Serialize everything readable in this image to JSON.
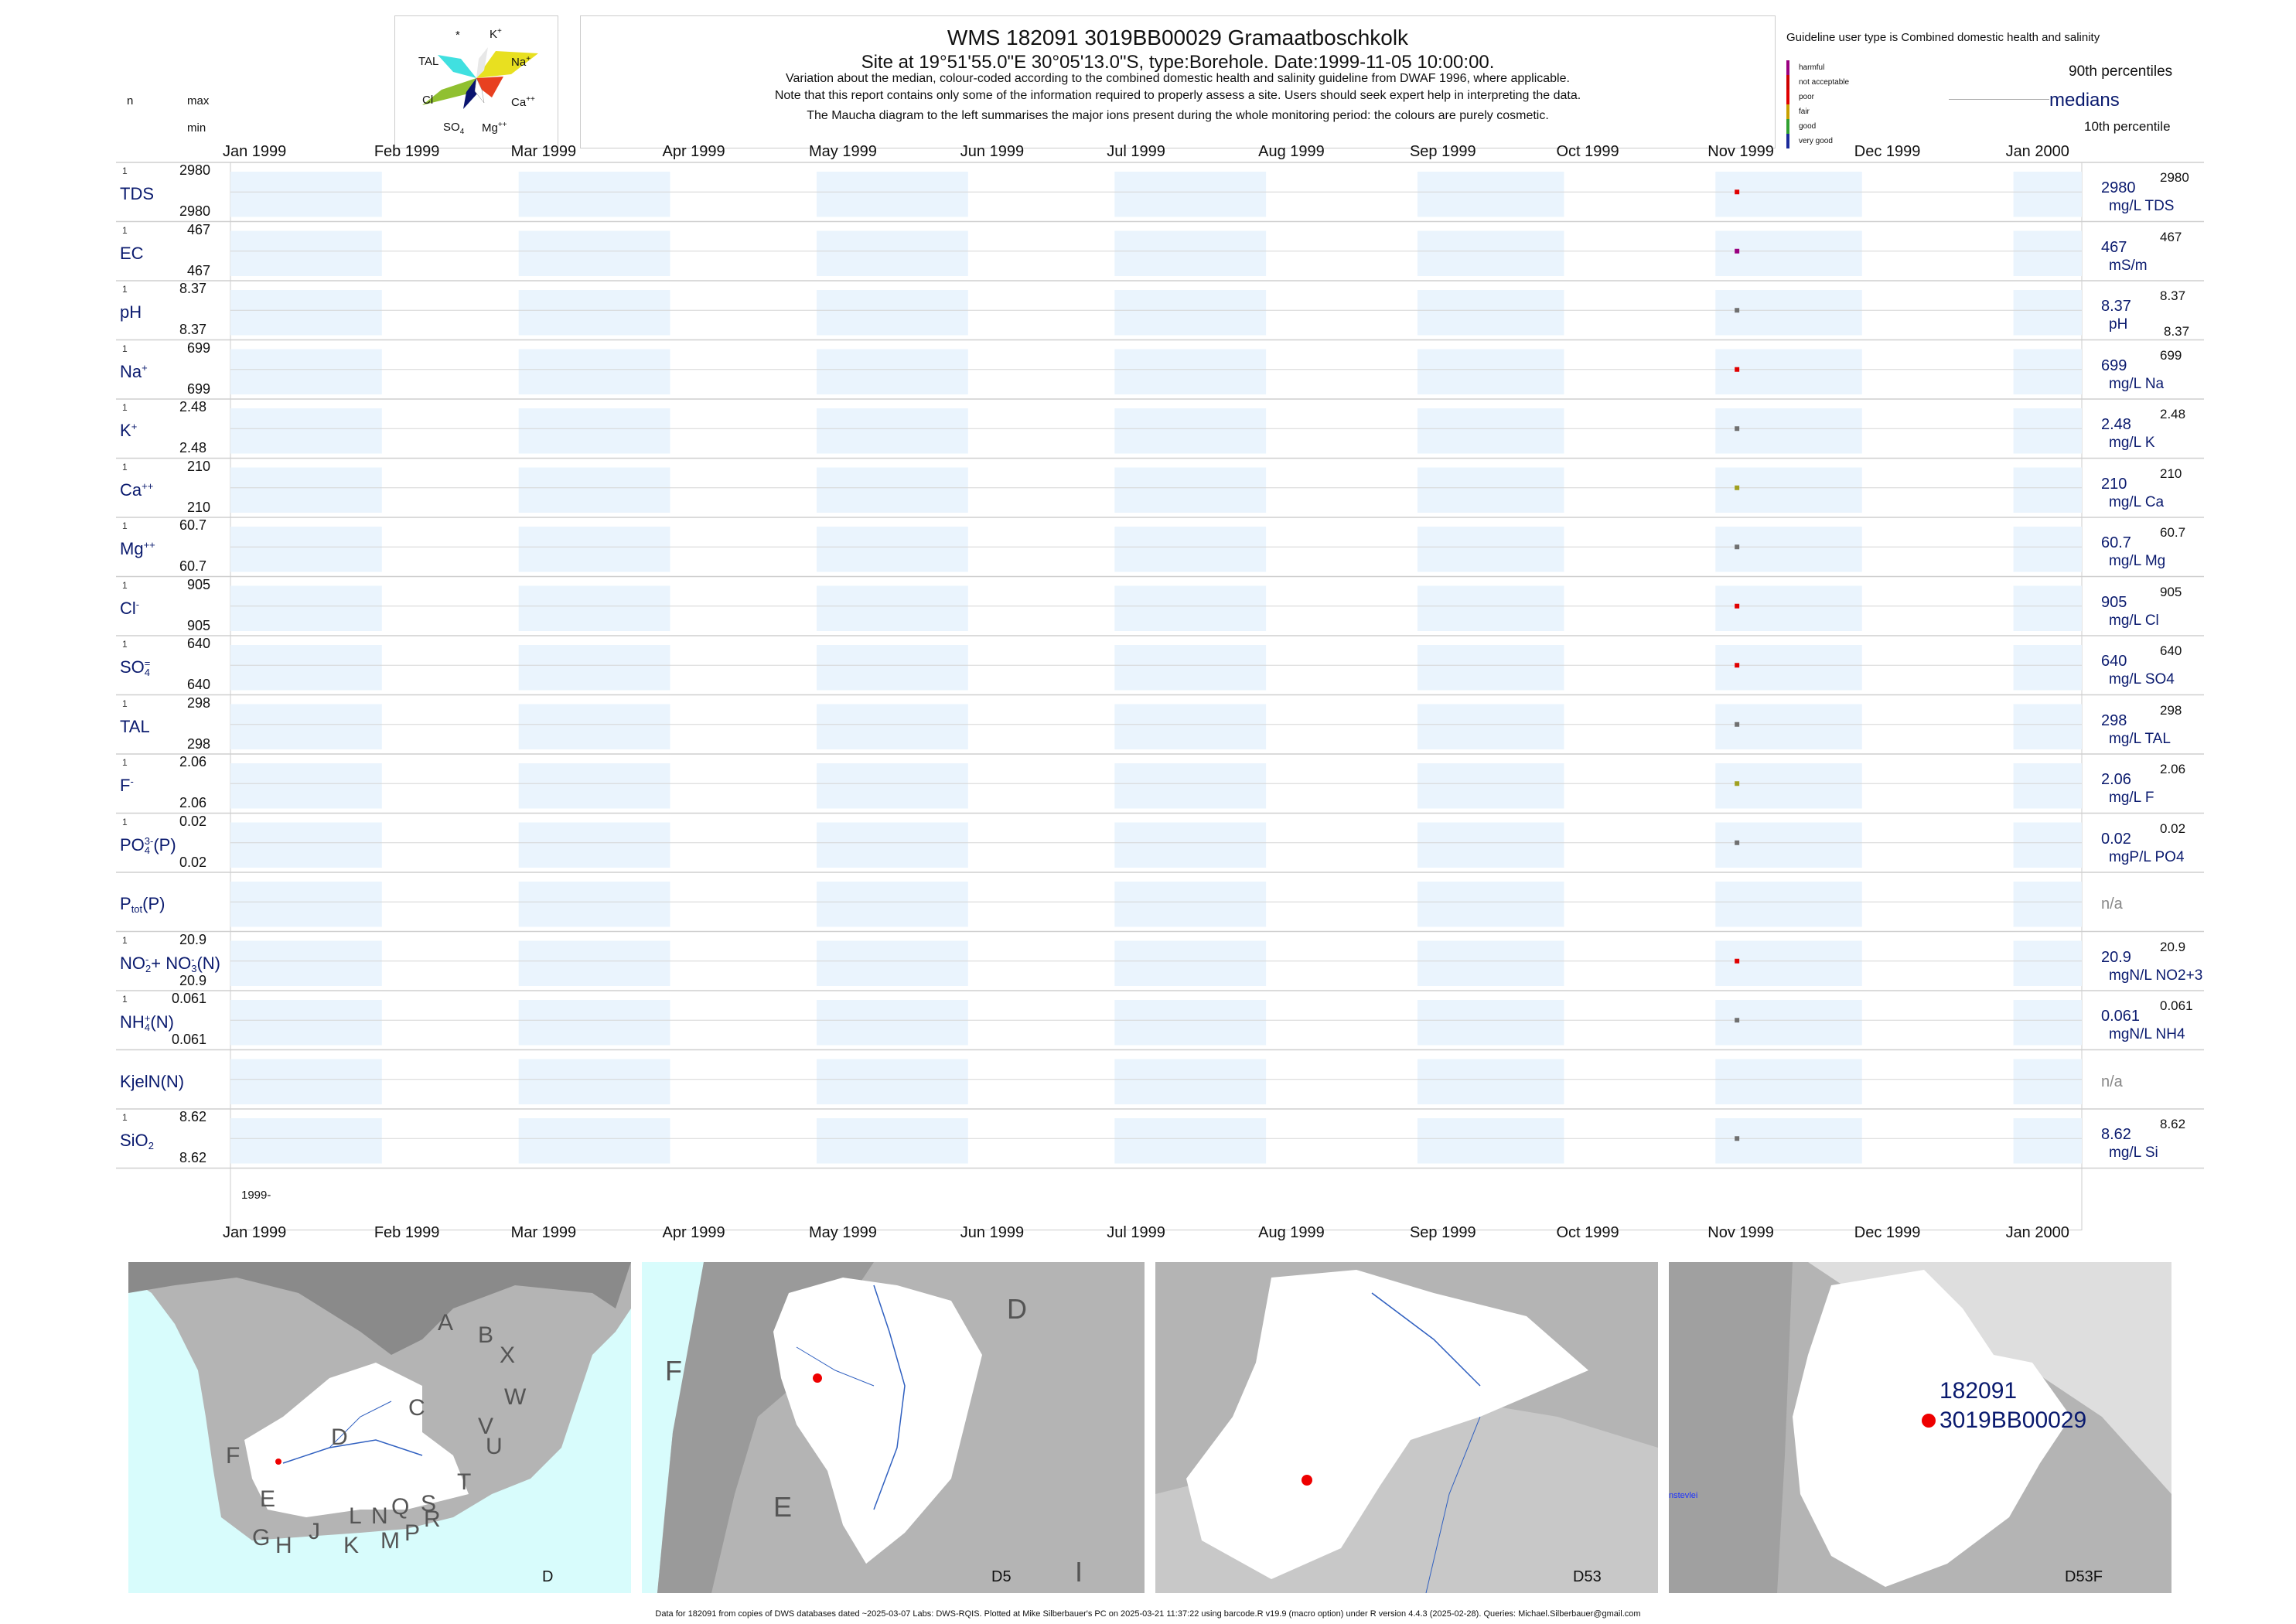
{
  "header": {
    "title": "WMS 182091 3019BB00029 Gramaatboschkolk",
    "subtitle": "Site at 19°51'55.0\"E 30°05'13.0\"S, type:Borehole. Date:1999-11-05 10:00:00.",
    "note1": "Variation about the median,  colour-coded according to the combined domestic health and salinity guideline from DWAF 1996, where applicable.",
    "note2": "Note that this report contains only some of the information required to properly assess a site. Users should seek expert help in interpreting the data.",
    "note3": "The Maucha diagram to the left summarises the major ions present during the whole monitoring period: the colours are purely cosmetic."
  },
  "maucha": {
    "labels": {
      "star": "*",
      "k": "K",
      "k_sup": "+",
      "tal": "TAL",
      "na": "Na",
      "na_sup": "+",
      "cl": "Cl",
      "ca": "Ca",
      "ca_sup": "++",
      "so4": "SO",
      "so4_sub": "4",
      "mg": "Mg",
      "mg_sup": "++"
    },
    "colors": {
      "na": "#e8e020",
      "cl": "#90c030",
      "so4": "#0a1470",
      "tal": "#40e0e0",
      "ca": "#e84020",
      "mg": "#ffffff",
      "k": "#e8e8e8"
    }
  },
  "left_header": {
    "n": "n",
    "max": "max",
    "min": "min"
  },
  "legend": {
    "guideline": "Guideline user type is Combined domestic health and salinity",
    "classes": [
      {
        "label": "harmful",
        "color": "#9a0080"
      },
      {
        "label": "not acceptable",
        "color": "#cc0000"
      },
      {
        "label": "poor",
        "color": "#e00000"
      },
      {
        "label": "fair",
        "color": "#c8a000"
      },
      {
        "label": "good",
        "color": "#30a030"
      },
      {
        "label": "very good",
        "color": "#1a2a9a"
      }
    ],
    "p90": "90th percentiles",
    "medians": "medians",
    "p10": "10th percentile"
  },
  "chart_data": {
    "type": "scatter",
    "x_axis": {
      "months": [
        "Jan 1999",
        "Feb 1999",
        "Mar 1999",
        "Apr 1999",
        "May 1999",
        "Jun 1999",
        "Jul 1999",
        "Aug 1999",
        "Sep 1999",
        "Oct 1999",
        "Nov 1999",
        "Dec 1999",
        "Jan 2000"
      ],
      "year_label": "1999-"
    },
    "sample_date": "1999-11-05",
    "series": [
      {
        "param": "TDS",
        "sup": "",
        "sub": "",
        "n": "1",
        "max": "2980",
        "min": "2980",
        "value": "2980",
        "unit": "mg/L TDS",
        "color": "#e00000"
      },
      {
        "param": "EC",
        "sup": "",
        "sub": "",
        "n": "1",
        "max": "467",
        "min": "467",
        "value": "467",
        "unit": "mS/m",
        "color": "#9a0080"
      },
      {
        "param": "pH",
        "sup": "",
        "sub": "",
        "n": "1",
        "max": "8.37",
        "min": "8.37",
        "value": "8.37",
        "unit": "pH",
        "color": "#707070",
        "right_min": "8.37"
      },
      {
        "param": "Na",
        "sup": "+",
        "sub": "",
        "n": "1",
        "max": "699",
        "min": "699",
        "value": "699",
        "unit": "mg/L Na",
        "color": "#e00000"
      },
      {
        "param": "K",
        "sup": "+",
        "sub": "",
        "n": "1",
        "max": "2.48",
        "min": "2.48",
        "value": "2.48",
        "unit": "mg/L K",
        "color": "#707070"
      },
      {
        "param": "Ca",
        "sup": "++",
        "sub": "",
        "n": "1",
        "max": "210",
        "min": "210",
        "value": "210",
        "unit": "mg/L Ca",
        "color": "#a0a020"
      },
      {
        "param": "Mg",
        "sup": "++",
        "sub": "",
        "n": "1",
        "max": "60.7",
        "min": "60.7",
        "value": "60.7",
        "unit": "mg/L Mg",
        "color": "#707070"
      },
      {
        "param": "Cl",
        "sup": "-",
        "sub": "",
        "n": "1",
        "max": "905",
        "min": "905",
        "value": "905",
        "unit": "mg/L Cl",
        "color": "#e00000"
      },
      {
        "param": "SO",
        "sup": "=",
        "sub": "4",
        "n": "1",
        "max": "640",
        "min": "640",
        "value": "640",
        "unit": "mg/L SO4",
        "color": "#e00000"
      },
      {
        "param": "TAL",
        "sup": "",
        "sub": "",
        "n": "1",
        "max": "298",
        "min": "298",
        "value": "298",
        "unit": "mg/L TAL",
        "color": "#707070"
      },
      {
        "param": "F",
        "sup": "-",
        "sub": "",
        "n": "1",
        "max": "2.06",
        "min": "2.06",
        "value": "2.06",
        "unit": "mg/L F",
        "color": "#a0a020"
      },
      {
        "param": "PO",
        "sup": "3-",
        "sub": "4",
        "suffix": "(P)",
        "n": "1",
        "max": "0.02",
        "min": "0.02",
        "value": "0.02",
        "unit": "mgP/L PO4",
        "color": "#707070"
      },
      {
        "param": "P",
        "sub": "tot",
        "suffix": "(P)",
        "n": "",
        "max": "",
        "min": "",
        "value": "n/a",
        "unit": "",
        "color": ""
      },
      {
        "param": "NO",
        "sup": "-",
        "sub": "2",
        "suffix": "+ NO",
        "suffix_sup": "-",
        "suffix_sub": "3",
        "suffix2": "(N)",
        "n": "1",
        "max": "20.9",
        "min": "20.9",
        "value": "20.9",
        "unit": "mgN/L NO2+3",
        "color": "#e00000"
      },
      {
        "param": "NH",
        "sup": "+",
        "sub": "4",
        "suffix": "(N)",
        "n": "1",
        "max": "0.061",
        "min": "0.061",
        "value": "0.061",
        "unit": "mgN/L NH4",
        "color": "#707070"
      },
      {
        "param": "KjelN(N)",
        "n": "",
        "max": "",
        "min": "",
        "value": "n/a",
        "unit": "",
        "color": ""
      },
      {
        "param": "SiO",
        "sub": "2",
        "n": "1",
        "max": "8.62",
        "min": "8.62",
        "value": "8.62",
        "unit": "mg/L Si",
        "color": "#707070"
      }
    ]
  },
  "maps": {
    "panel1": {
      "label": "D",
      "regions": [
        "A",
        "B",
        "X",
        "W",
        "C",
        "V",
        "U",
        "T",
        "D",
        "F",
        "E",
        "G",
        "H",
        "J",
        "K",
        "L",
        "M",
        "N",
        "P",
        "Q",
        "R",
        "S"
      ]
    },
    "panel2": {
      "label": "D5",
      "regions": [
        "D",
        "F",
        "E",
        "I"
      ]
    },
    "panel3": {
      "label": "D53"
    },
    "panel4": {
      "label": "D53F",
      "site_line1": "182091",
      "site_line2": "3019BB00029",
      "place": "nstevlei"
    },
    "colors": {
      "sea": "#d8fcfc",
      "land": "#b4b4b4",
      "dark": "#8a8a8a",
      "catchment": "#ffffff",
      "site": "#ee0000",
      "river": "#3060c0"
    }
  },
  "footer": "Data for 182091 from copies of DWS databases dated ~2025-03-07 Labs: DWS-RQIS. Plotted at Mike Silberbauer's PC on 2025-03-21 11:37:22 using barcode.R v19.9 (macro option) under R version 4.4.3 (2025-02-28). Queries: Michael.Silberbauer@gmail.com"
}
